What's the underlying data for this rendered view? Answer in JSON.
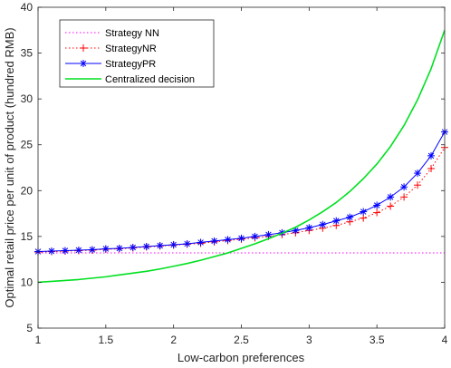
{
  "chart_data": {
    "type": "line",
    "title": "",
    "xlabel": "Low-carbon preferences",
    "ylabel": "Optimal retail price per unit of product (hundred RMB)",
    "xlim": [
      1,
      4
    ],
    "ylim": [
      5,
      40
    ],
    "x_ticks": [
      "1",
      "1.5",
      "2",
      "2.5",
      "3",
      "3.5",
      "4"
    ],
    "y_ticks": [
      "5",
      "10",
      "15",
      "20",
      "25",
      "30",
      "35",
      "40"
    ],
    "grid": false,
    "legend_position": "top-left",
    "x": [
      1.0,
      1.1,
      1.2,
      1.3,
      1.4,
      1.5,
      1.6,
      1.7,
      1.8,
      1.9,
      2.0,
      2.1,
      2.2,
      2.3,
      2.4,
      2.5,
      2.6,
      2.7,
      2.8,
      2.9,
      3.0,
      3.1,
      3.2,
      3.3,
      3.4,
      3.5,
      3.6,
      3.7,
      3.8,
      3.9,
      4.0
    ],
    "series": [
      {
        "name": "Strategy NN",
        "color": "#ff00ff",
        "line_style": "dotted",
        "marker": "none",
        "values": [
          13.2,
          13.2,
          13.2,
          13.2,
          13.2,
          13.2,
          13.2,
          13.2,
          13.2,
          13.2,
          13.2,
          13.2,
          13.2,
          13.2,
          13.2,
          13.2,
          13.2,
          13.2,
          13.2,
          13.2,
          13.2,
          13.2,
          13.2,
          13.2,
          13.2,
          13.2,
          13.2,
          13.2,
          13.2,
          13.2,
          13.2
        ]
      },
      {
        "name": "StrategyNR",
        "color": "#ff0000",
        "line_style": "dotted",
        "marker": "plus",
        "values": [
          13.3,
          13.35,
          13.4,
          13.45,
          13.5,
          13.6,
          13.65,
          13.75,
          13.85,
          13.95,
          14.05,
          14.15,
          14.25,
          14.4,
          14.55,
          14.7,
          14.85,
          15.0,
          15.2,
          15.4,
          15.65,
          15.9,
          16.2,
          16.6,
          17.0,
          17.6,
          18.3,
          19.3,
          20.6,
          22.4,
          24.7
        ]
      },
      {
        "name": "StrategyPR",
        "color": "#0000ff",
        "line_style": "solid",
        "marker": "asterisk",
        "values": [
          13.35,
          13.4,
          13.45,
          13.5,
          13.55,
          13.65,
          13.7,
          13.8,
          13.9,
          14.0,
          14.1,
          14.2,
          14.35,
          14.5,
          14.65,
          14.8,
          15.0,
          15.2,
          15.4,
          15.65,
          15.95,
          16.3,
          16.7,
          17.1,
          17.7,
          18.4,
          19.3,
          20.4,
          21.9,
          23.8,
          26.4
        ]
      },
      {
        "name": "Centralized decision",
        "color": "#00e020",
        "line_style": "solid",
        "marker": "none",
        "values": [
          10.0,
          10.1,
          10.2,
          10.3,
          10.45,
          10.6,
          10.8,
          11.0,
          11.2,
          11.45,
          11.75,
          12.05,
          12.4,
          12.8,
          13.2,
          13.7,
          14.2,
          14.75,
          15.35,
          16.0,
          16.8,
          17.7,
          18.7,
          19.9,
          21.3,
          22.9,
          24.8,
          27.1,
          29.9,
          33.3,
          37.5
        ]
      }
    ]
  }
}
